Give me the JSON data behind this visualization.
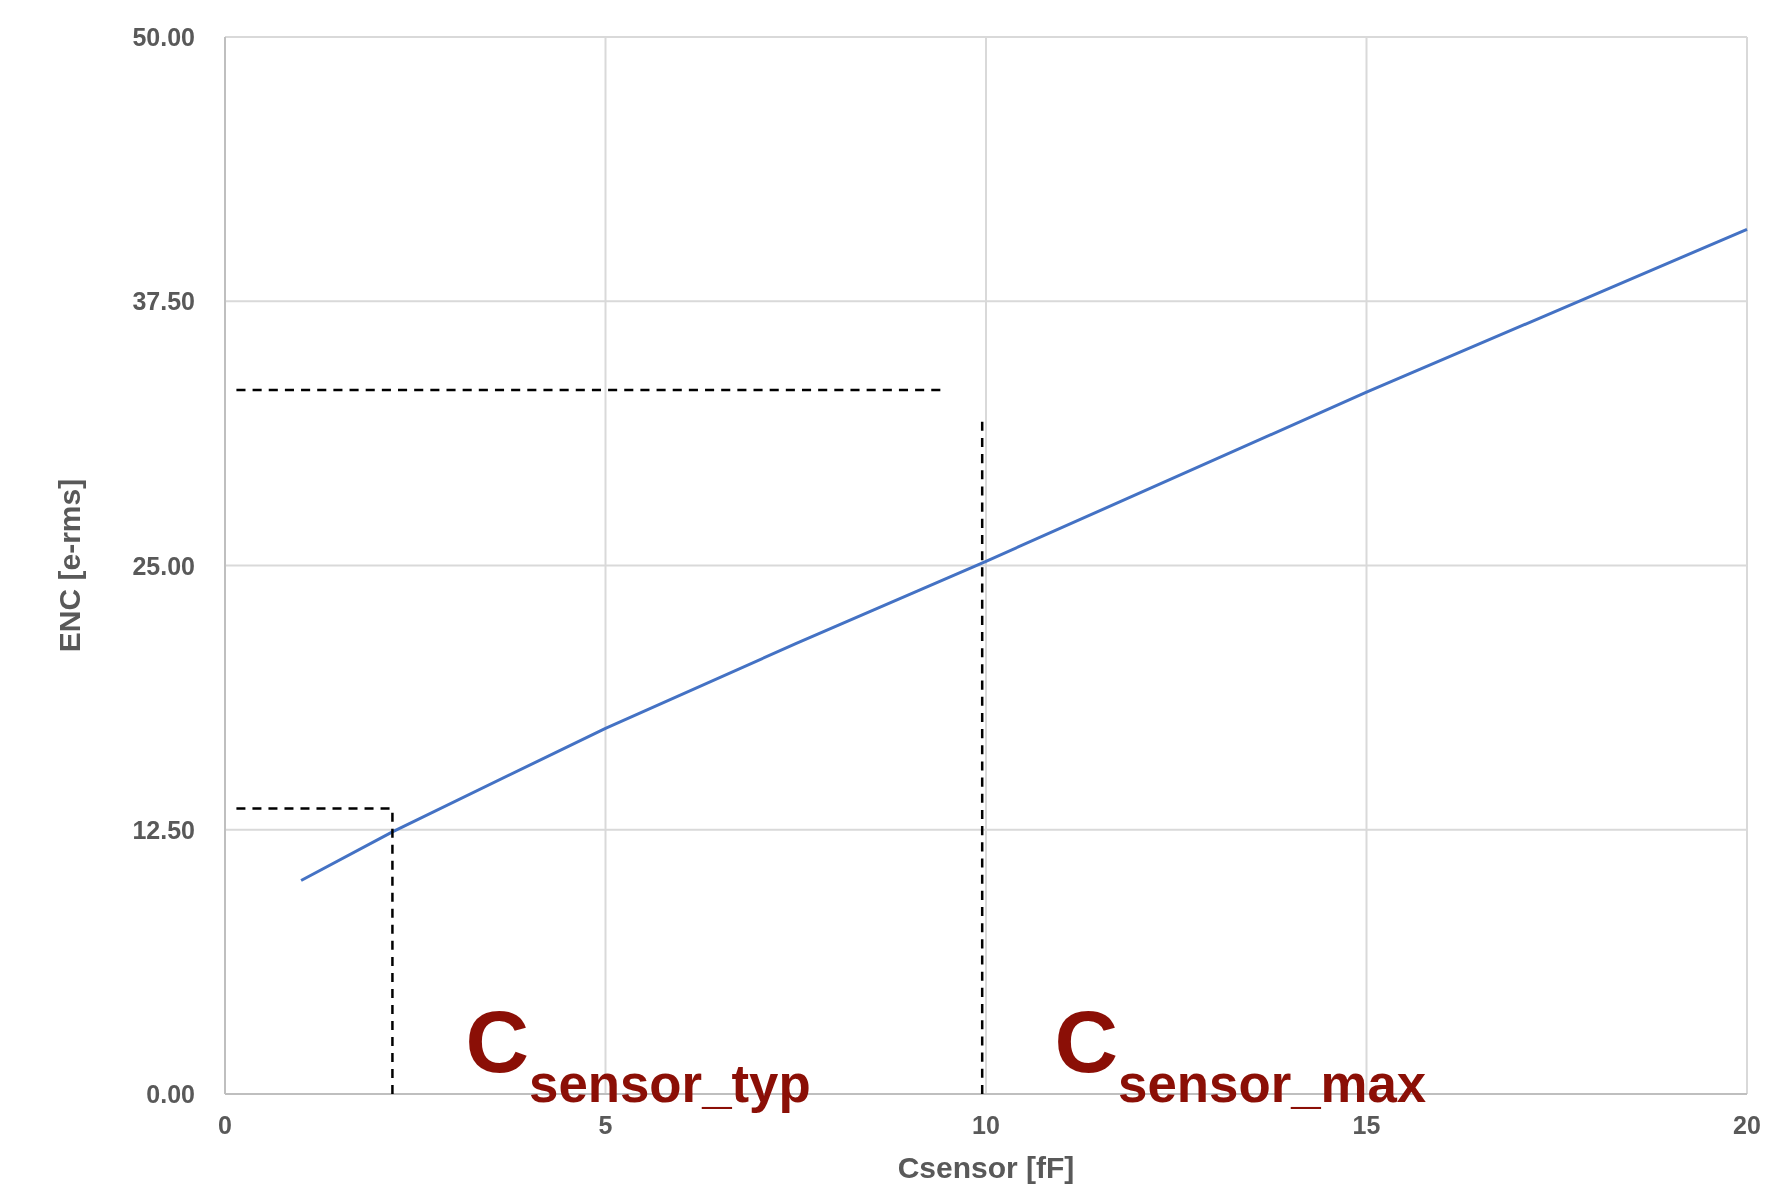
{
  "chart_data": {
    "type": "line",
    "xlabel": "Csensor [fF]",
    "ylabel": "ENC [e-rms]",
    "xlim": [
      0,
      20
    ],
    "ylim": [
      0,
      50
    ],
    "xticks": [
      0,
      5,
      10,
      15,
      20
    ],
    "yticks": [
      {
        "value": 0,
        "label": "0.00"
      },
      {
        "value": 12.5,
        "label": "12.50"
      },
      {
        "value": 25,
        "label": "25.00"
      },
      {
        "value": 37.5,
        "label": "37.50"
      },
      {
        "value": 50,
        "label": "50.00"
      }
    ],
    "grid": true,
    "marker": "none",
    "series": [
      {
        "color": "#4472c4",
        "x": [
          1,
          2.2,
          5,
          7.5,
          10,
          15,
          20
        ],
        "values": [
          10.1,
          12.4,
          17.3,
          21.3,
          25.2,
          33.2,
          40.9
        ],
        "line_style": "solid"
      },
      {
        "color": "#000000",
        "x": [
          0.15,
          2.2,
          2.2
        ],
        "values": [
          13.5,
          13.5,
          0
        ],
        "line_style": "dashed"
      },
      {
        "color": "#000000",
        "x": [
          0.15,
          9.4
        ],
        "values": [
          33.3,
          33.3
        ],
        "line_style": "dashed"
      },
      {
        "color": "#000000",
        "x": [
          9.95,
          9.95
        ],
        "values": [
          31.8,
          0
        ],
        "line_style": "dashed"
      }
    ],
    "annotations": [
      "C$_{sensor_typ}$",
      "C$_{sensor_max}$"
    ]
  }
}
